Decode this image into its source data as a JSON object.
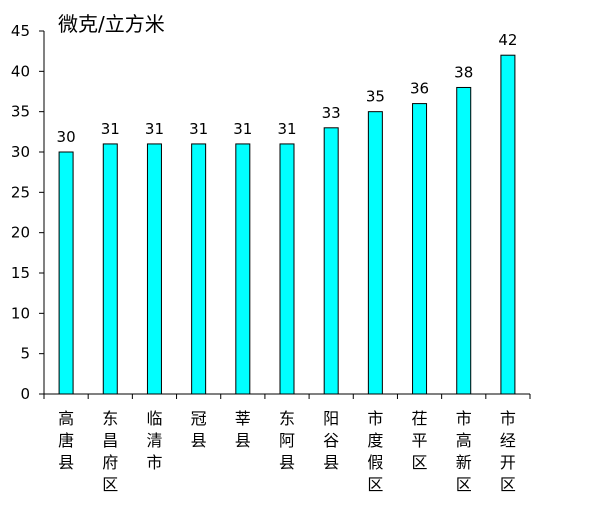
{
  "chart_data": {
    "type": "bar",
    "ylabel": "微克/立方米",
    "title": "",
    "xlabel": "",
    "ylim": [
      0,
      45
    ],
    "yticks": [
      0,
      5,
      10,
      15,
      20,
      25,
      30,
      35,
      40,
      45
    ],
    "categories": [
      "高唐县",
      "东昌府区",
      "临清市",
      "冠县",
      "莘县",
      "东阿县",
      "阳谷县",
      "市度假区",
      "茌平区",
      "市高新区",
      "市经开区"
    ],
    "values": [
      30,
      31,
      31,
      31,
      31,
      31,
      33,
      35,
      36,
      38,
      42
    ],
    "bar_color": "#00FFFF",
    "bar_edge_color": "#000000",
    "grid": false,
    "legend": "none"
  }
}
